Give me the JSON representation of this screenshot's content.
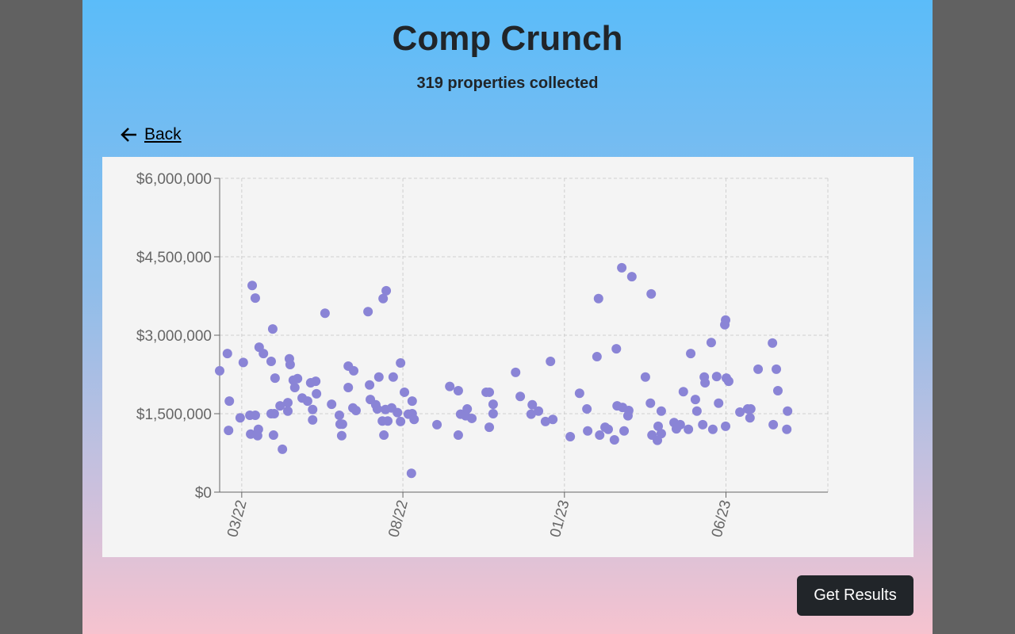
{
  "header": {
    "title": "Comp Crunch",
    "subtitle": "319 properties collected"
  },
  "back_link": "Back",
  "action_button": "Get Results",
  "chart_data": {
    "type": "scatter",
    "color": "#8a84d6",
    "grid": true,
    "xlim": [
      2022.11,
      2023.68
    ],
    "ylim": [
      0,
      6000000
    ],
    "xticks": [
      {
        "value": 2022.167,
        "label": "03/22"
      },
      {
        "value": 2022.583,
        "label": "08/22"
      },
      {
        "value": 2023.0,
        "label": "01/23"
      },
      {
        "value": 2023.417,
        "label": "06/23"
      }
    ],
    "yticks": [
      {
        "value": 0,
        "label": "$0"
      },
      {
        "value": 1500000,
        "label": "$1,500,000"
      },
      {
        "value": 3000000,
        "label": "$3,000,000"
      },
      {
        "value": 4500000,
        "label": "$4,500,000"
      },
      {
        "value": 6000000,
        "label": "$6,000,000"
      }
    ],
    "x": [
      2022.11,
      2022.13,
      2022.135,
      2022.133,
      2022.163,
      2022.171,
      2022.188,
      2022.19,
      2022.194,
      2022.202,
      2022.202,
      2022.208,
      2022.21,
      2022.212,
      2022.223,
      2022.243,
      2022.247,
      2022.243,
      2022.249,
      2022.253,
      2022.251,
      2022.266,
      2022.272,
      2022.286,
      2022.286,
      2022.29,
      2022.292,
      2022.3,
      2022.304,
      2022.311,
      2022.323,
      2022.337,
      2022.345,
      2022.35,
      2022.35,
      2022.358,
      2022.36,
      2022.382,
      2022.399,
      2022.419,
      2022.421,
      2022.427,
      2022.425,
      2022.442,
      2022.442,
      2022.456,
      2022.454,
      2022.462,
      2022.493,
      2022.497,
      2022.499,
      2022.513,
      2022.517,
      2022.521,
      2022.53,
      2022.532,
      2022.54,
      2022.534,
      2022.538,
      2022.544,
      2022.554,
      2022.558,
      2022.569,
      2022.577,
      2022.577,
      2022.587,
      2022.597,
      2022.605,
      2022.607,
      2022.607,
      2022.612,
      2022.671,
      2022.704,
      2022.726,
      2022.726,
      2022.732,
      2022.745,
      2022.749,
      2022.761,
      2022.798,
      2022.806,
      2022.806,
      2022.816,
      2022.816,
      2022.874,
      2022.886,
      2022.914,
      2022.917,
      2022.933,
      2022.951,
      2022.964,
      2022.97,
      2023.015,
      2023.039,
      2023.058,
      2023.06,
      2023.084,
      2023.088,
      2023.091,
      2023.105,
      2023.113,
      2023.129,
      2023.134,
      2023.136,
      2023.148,
      2023.15,
      2023.154,
      2023.164,
      2023.166,
      2023.174,
      2023.209,
      2023.222,
      2023.224,
      2023.226,
      2023.24,
      2023.242,
      2023.25,
      2023.25,
      2023.283,
      2023.289,
      2023.299,
      2023.307,
      2023.32,
      2023.326,
      2023.338,
      2023.342,
      2023.357,
      2023.361,
      2023.363,
      2023.379,
      2023.383,
      2023.393,
      2023.398,
      2023.414,
      2023.416,
      2023.416,
      2023.418,
      2023.424,
      2023.453,
      2023.473,
      2023.481,
      2023.479,
      2023.5,
      2023.537,
      2023.539,
      2023.547,
      2023.551,
      2023.574,
      2023.576
    ],
    "values": [
      2320000,
      2650000,
      1740000,
      1180000,
      1420000,
      2480000,
      1470000,
      1110000,
      3950000,
      3710000,
      1470000,
      1080000,
      1200000,
      2770000,
      2650000,
      2500000,
      3120000,
      1500000,
      1090000,
      2180000,
      1500000,
      1650000,
      820000,
      1710000,
      1550000,
      2550000,
      2440000,
      2140000,
      2000000,
      2170000,
      1800000,
      1740000,
      2090000,
      1580000,
      1380000,
      2120000,
      1880000,
      3420000,
      1680000,
      1470000,
      1300000,
      1300000,
      1080000,
      2000000,
      2410000,
      2320000,
      1610000,
      1560000,
      3450000,
      2050000,
      1770000,
      1670000,
      1590000,
      2200000,
      1360000,
      3700000,
      3850000,
      1090000,
      1580000,
      1360000,
      1610000,
      2200000,
      1520000,
      2470000,
      1350000,
      1910000,
      1490000,
      360000,
      1740000,
      1500000,
      1390000,
      1290000,
      2020000,
      1940000,
      1090000,
      1490000,
      1460000,
      1590000,
      1410000,
      1910000,
      1910000,
      1240000,
      1680000,
      1500000,
      2290000,
      1830000,
      1490000,
      1670000,
      1550000,
      1350000,
      2500000,
      1390000,
      1060000,
      1890000,
      1590000,
      1170000,
      2590000,
      3700000,
      1090000,
      1240000,
      1200000,
      1000000,
      2740000,
      1650000,
      4290000,
      1620000,
      1170000,
      1460000,
      1560000,
      4120000,
      2200000,
      1700000,
      3790000,
      1090000,
      990000,
      1260000,
      1550000,
      1120000,
      1330000,
      1210000,
      1290000,
      1920000,
      1200000,
      2650000,
      1770000,
      1550000,
      1290000,
      2200000,
      2090000,
      2860000,
      1200000,
      2210000,
      1700000,
      3200000,
      3290000,
      1260000,
      2180000,
      2120000,
      1530000,
      1590000,
      1590000,
      1420000,
      2350000,
      2850000,
      1290000,
      2350000,
      1940000,
      1200000,
      1550000
    ]
  }
}
